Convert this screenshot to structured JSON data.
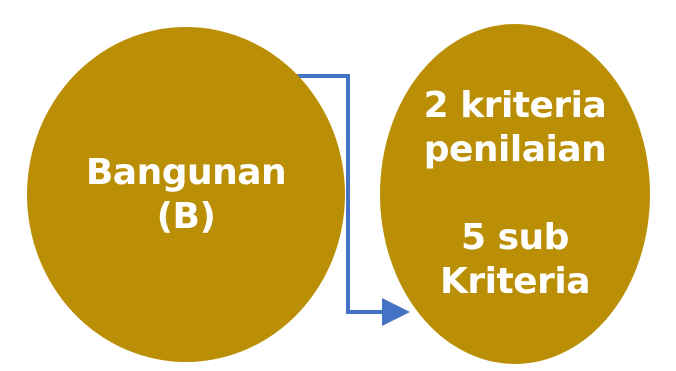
{
  "colors": {
    "node_fill": "#BB8F05",
    "connector": "#4472C4",
    "text": "#FFFFFF"
  },
  "nodes": {
    "left": {
      "lines": [
        "Bangunan",
        "(B)"
      ]
    },
    "right": {
      "group1": [
        "2 kriteria",
        "penilaian"
      ],
      "group2": [
        "5 sub",
        "Kriteria"
      ]
    }
  }
}
